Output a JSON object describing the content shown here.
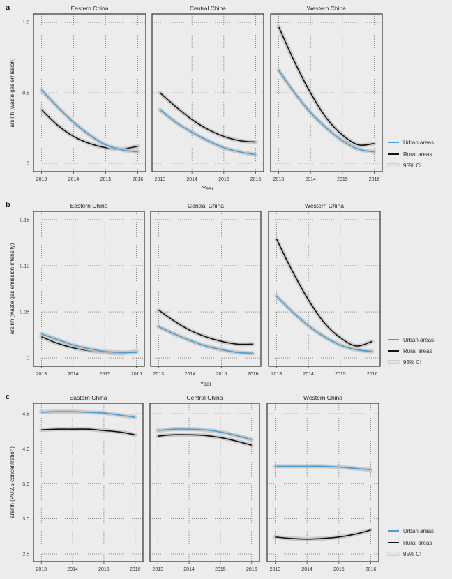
{
  "colors": {
    "urban": "#4a9fd0",
    "rural": "#111111",
    "ci": "#c8c8c8",
    "background": "#ececec",
    "grid": "#555555"
  },
  "legend": {
    "urban": "Urban areas",
    "rural": "Rural areas",
    "ci": "95% CI"
  },
  "chart_data": [
    {
      "panel_label": "a",
      "type": "line",
      "xlabel": "Year",
      "ylabel": "arsinh (waste gas emission)",
      "xlim": [
        2012.75,
        2016.25
      ],
      "ylim": [
        -0.06,
        1.06
      ],
      "xticks": [
        "2013",
        "2014",
        "2015",
        "2016"
      ],
      "yticks": [
        "0",
        "0.5",
        "1.0"
      ],
      "ytick_values": [
        0,
        0.5,
        1.0
      ],
      "grid": true,
      "legend_placement": "right",
      "x": [
        2013,
        2013.5,
        2014,
        2014.5,
        2015,
        2015.5,
        2016
      ],
      "facets": [
        {
          "title": "Eastern China",
          "series": [
            {
              "name": "Urban areas",
              "values": [
                0.52,
                0.4,
                0.29,
                0.2,
                0.13,
                0.095,
                0.08
              ]
            },
            {
              "name": "Rural areas",
              "values": [
                0.38,
                0.27,
                0.19,
                0.14,
                0.11,
                0.1,
                0.12
              ]
            }
          ]
        },
        {
          "title": "Central China",
          "series": [
            {
              "name": "Urban areas",
              "values": [
                0.38,
                0.29,
                0.22,
                0.16,
                0.11,
                0.08,
                0.06
              ]
            },
            {
              "name": "Rural areas",
              "values": [
                0.5,
                0.4,
                0.31,
                0.24,
                0.19,
                0.16,
                0.15
              ]
            }
          ]
        },
        {
          "title": "Western China",
          "series": [
            {
              "name": "Urban areas",
              "values": [
                0.66,
                0.5,
                0.36,
                0.25,
                0.16,
                0.1,
                0.08
              ]
            },
            {
              "name": "Rural areas",
              "values": [
                0.97,
                0.72,
                0.5,
                0.32,
                0.2,
                0.13,
                0.14
              ]
            }
          ]
        }
      ]
    },
    {
      "panel_label": "b",
      "type": "line",
      "xlabel": "Year",
      "ylabel": "arsinh (waste gas emission intensity)",
      "xlim": [
        2012.75,
        2016.25
      ],
      "ylim": [
        -0.009,
        0.159
      ],
      "xticks": [
        "2013",
        "2014",
        "2015",
        "2016"
      ],
      "yticks": [
        "0",
        "0.05",
        "0.10",
        "0.15"
      ],
      "ytick_values": [
        0,
        0.05,
        0.1,
        0.15
      ],
      "grid": true,
      "legend_placement": "right",
      "x": [
        2013,
        2013.5,
        2014,
        2014.5,
        2015,
        2015.5,
        2016
      ],
      "facets": [
        {
          "title": "Eastern China",
          "series": [
            {
              "name": "Urban areas",
              "values": [
                0.026,
                0.02,
                0.014,
                0.01,
                0.007,
                0.006,
                0.006
              ]
            },
            {
              "name": "Rural areas",
              "values": [
                0.023,
                0.016,
                0.011,
                0.008,
                0.006,
                0.005,
                0.007
              ]
            }
          ]
        },
        {
          "title": "Central China",
          "series": [
            {
              "name": "Urban areas",
              "values": [
                0.034,
                0.026,
                0.019,
                0.013,
                0.009,
                0.006,
                0.005
              ]
            },
            {
              "name": "Rural areas",
              "values": [
                0.052,
                0.04,
                0.03,
                0.023,
                0.018,
                0.015,
                0.015
              ]
            }
          ]
        },
        {
          "title": "Western China",
          "series": [
            {
              "name": "Urban areas",
              "values": [
                0.067,
                0.05,
                0.035,
                0.023,
                0.014,
                0.009,
                0.007
              ]
            },
            {
              "name": "Rural areas",
              "values": [
                0.129,
                0.094,
                0.063,
                0.038,
                0.022,
                0.013,
                0.018
              ]
            }
          ]
        }
      ]
    },
    {
      "panel_label": "c",
      "type": "line",
      "xlabel": "",
      "ylabel": "arsinh (PM2.5 concentration)",
      "xlim": [
        2012.75,
        2016.25
      ],
      "ylim": [
        2.39,
        4.65
      ],
      "xticks": [
        "2013",
        "2014",
        "2015",
        "2016"
      ],
      "yticks": [
        "2.5",
        "3.0",
        "3.5",
        "4.0",
        "4.5"
      ],
      "ytick_values": [
        2.5,
        3.0,
        3.5,
        4.0,
        4.5
      ],
      "grid": true,
      "legend_placement": "right",
      "x": [
        2013,
        2013.5,
        2014,
        2014.5,
        2015,
        2015.5,
        2016
      ],
      "facets": [
        {
          "title": "Eastern China",
          "series": [
            {
              "name": "Urban areas",
              "values": [
                4.52,
                4.53,
                4.53,
                4.52,
                4.51,
                4.48,
                4.45
              ]
            },
            {
              "name": "Rural areas",
              "values": [
                4.27,
                4.28,
                4.28,
                4.28,
                4.26,
                4.24,
                4.2
              ]
            }
          ]
        },
        {
          "title": "Central China",
          "series": [
            {
              "name": "Urban areas",
              "values": [
                4.26,
                4.28,
                4.28,
                4.27,
                4.24,
                4.19,
                4.13
              ]
            },
            {
              "name": "Rural areas",
              "values": [
                4.18,
                4.2,
                4.2,
                4.19,
                4.16,
                4.11,
                4.05
              ]
            }
          ]
        },
        {
          "title": "Western China",
          "series": [
            {
              "name": "Urban areas",
              "values": [
                3.75,
                3.75,
                3.75,
                3.75,
                3.74,
                3.72,
                3.7
              ]
            },
            {
              "name": "Rural areas",
              "values": [
                2.74,
                2.72,
                2.71,
                2.72,
                2.74,
                2.78,
                2.84
              ]
            }
          ]
        }
      ]
    }
  ]
}
